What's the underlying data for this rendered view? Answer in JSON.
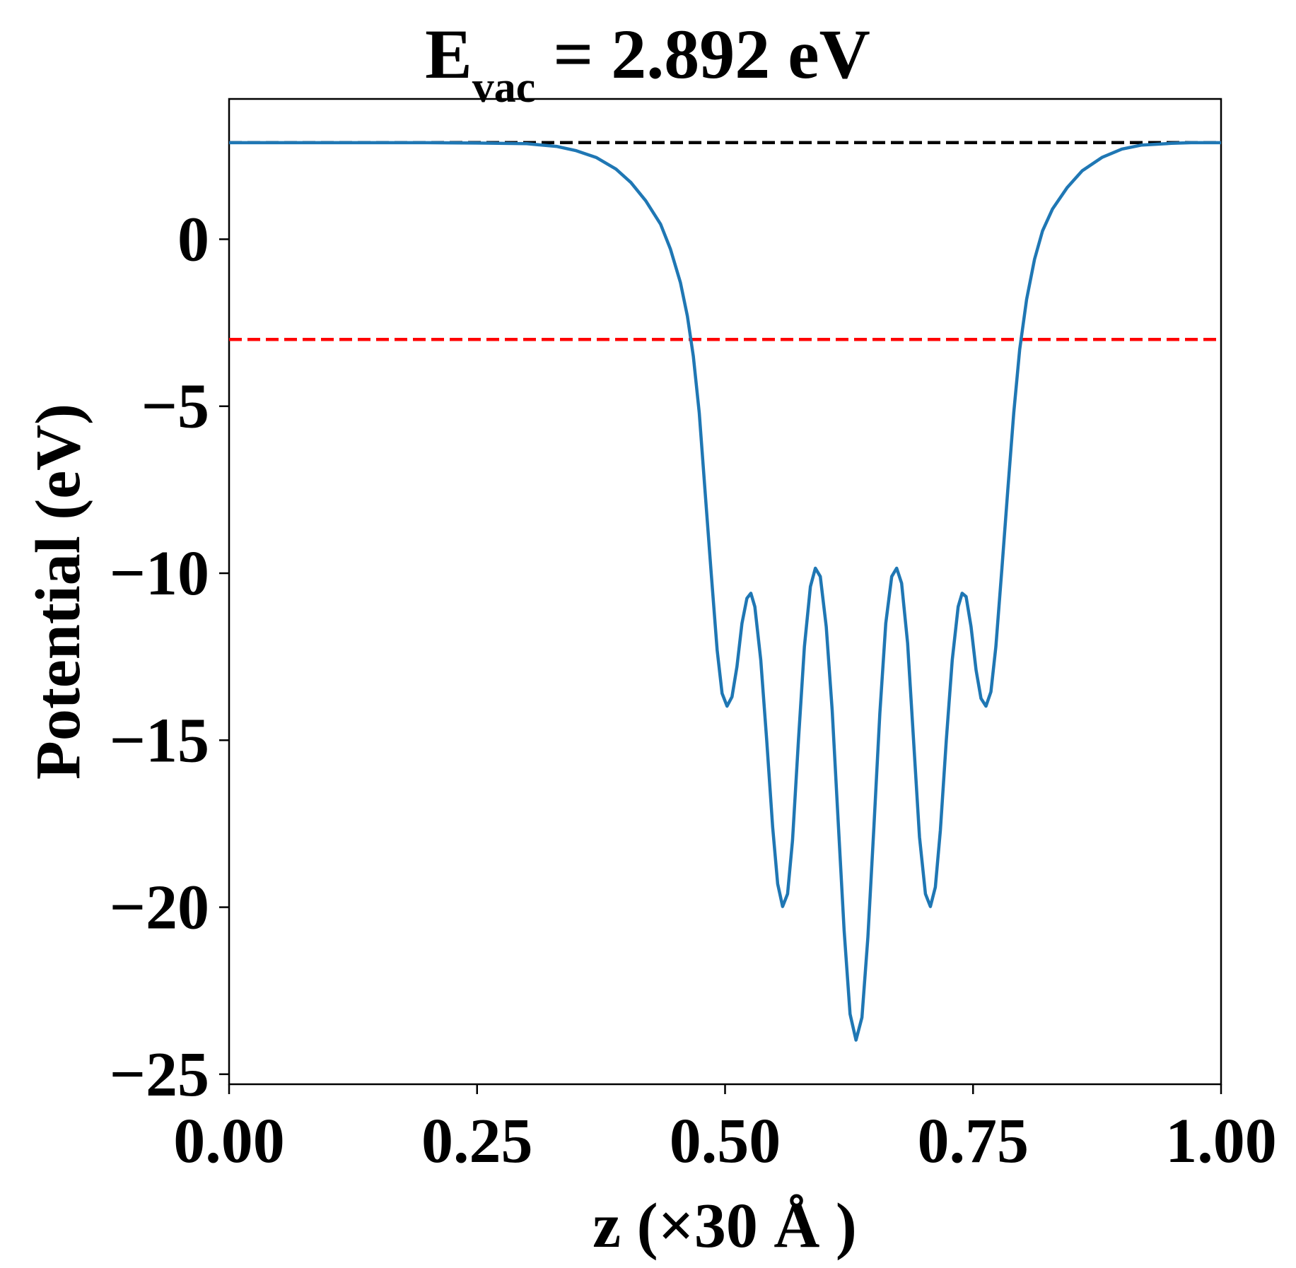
{
  "chart_data": {
    "type": "line",
    "title": {
      "main": "E",
      "subscript": "vac",
      "rest": " = 2.892 eV"
    },
    "xlabel": "z (×30 Å )",
    "ylabel": "Potential (eV)",
    "xlim": [
      0,
      1
    ],
    "ylim": [
      -25.3,
      4.2
    ],
    "x_ticks": [
      0,
      0.25,
      0.5,
      0.75,
      1.0
    ],
    "x_tick_labels": [
      "0.00",
      "0.25",
      "0.50",
      "0.75",
      "1.00"
    ],
    "y_ticks": [
      0,
      -5,
      -10,
      -15,
      -20,
      -25
    ],
    "y_tick_labels": [
      "0",
      "−5",
      "−10",
      "−15",
      "−20",
      "−25"
    ],
    "grid": false,
    "legend": "none",
    "reference_lines": [
      {
        "y": 2.892,
        "color": "#000000",
        "style": "dashed"
      },
      {
        "y": -3.0,
        "color": "#ff0000",
        "style": "dashed"
      }
    ],
    "series": [
      {
        "color": "#1f77b4",
        "points": [
          [
            0.0,
            2.89
          ],
          [
            0.05,
            2.89
          ],
          [
            0.1,
            2.89
          ],
          [
            0.15,
            2.89
          ],
          [
            0.2,
            2.89
          ],
          [
            0.25,
            2.88
          ],
          [
            0.3,
            2.86
          ],
          [
            0.33,
            2.78
          ],
          [
            0.35,
            2.65
          ],
          [
            0.37,
            2.45
          ],
          [
            0.39,
            2.1
          ],
          [
            0.405,
            1.7
          ],
          [
            0.42,
            1.15
          ],
          [
            0.435,
            0.45
          ],
          [
            0.445,
            -0.3
          ],
          [
            0.455,
            -1.3
          ],
          [
            0.462,
            -2.3
          ],
          [
            0.468,
            -3.5
          ],
          [
            0.474,
            -5.2
          ],
          [
            0.48,
            -7.6
          ],
          [
            0.486,
            -10.0
          ],
          [
            0.492,
            -12.3
          ],
          [
            0.497,
            -13.6
          ],
          [
            0.502,
            -13.98
          ],
          [
            0.507,
            -13.7
          ],
          [
            0.512,
            -12.8
          ],
          [
            0.517,
            -11.5
          ],
          [
            0.522,
            -10.75
          ],
          [
            0.526,
            -10.6
          ],
          [
            0.53,
            -11.0
          ],
          [
            0.536,
            -12.6
          ],
          [
            0.542,
            -15.0
          ],
          [
            0.548,
            -17.6
          ],
          [
            0.553,
            -19.3
          ],
          [
            0.558,
            -19.98
          ],
          [
            0.563,
            -19.6
          ],
          [
            0.568,
            -18.0
          ],
          [
            0.574,
            -15.0
          ],
          [
            0.58,
            -12.2
          ],
          [
            0.586,
            -10.4
          ],
          [
            0.591,
            -9.85
          ],
          [
            0.596,
            -10.1
          ],
          [
            0.602,
            -11.6
          ],
          [
            0.608,
            -14.1
          ],
          [
            0.614,
            -17.4
          ],
          [
            0.62,
            -20.7
          ],
          [
            0.626,
            -23.2
          ],
          [
            0.632,
            -23.98
          ],
          [
            0.638,
            -23.3
          ],
          [
            0.644,
            -20.9
          ],
          [
            0.65,
            -17.6
          ],
          [
            0.656,
            -14.2
          ],
          [
            0.662,
            -11.5
          ],
          [
            0.668,
            -10.1
          ],
          [
            0.673,
            -9.85
          ],
          [
            0.678,
            -10.3
          ],
          [
            0.684,
            -12.1
          ],
          [
            0.69,
            -15.0
          ],
          [
            0.696,
            -17.9
          ],
          [
            0.702,
            -19.6
          ],
          [
            0.707,
            -19.98
          ],
          [
            0.712,
            -19.4
          ],
          [
            0.717,
            -17.7
          ],
          [
            0.723,
            -15.0
          ],
          [
            0.729,
            -12.6
          ],
          [
            0.735,
            -11.0
          ],
          [
            0.739,
            -10.6
          ],
          [
            0.743,
            -10.7
          ],
          [
            0.748,
            -11.6
          ],
          [
            0.753,
            -12.9
          ],
          [
            0.758,
            -13.75
          ],
          [
            0.763,
            -13.98
          ],
          [
            0.768,
            -13.55
          ],
          [
            0.773,
            -12.2
          ],
          [
            0.779,
            -9.9
          ],
          [
            0.785,
            -7.5
          ],
          [
            0.791,
            -5.2
          ],
          [
            0.797,
            -3.3
          ],
          [
            0.804,
            -1.8
          ],
          [
            0.812,
            -0.6
          ],
          [
            0.82,
            0.25
          ],
          [
            0.83,
            0.9
          ],
          [
            0.845,
            1.55
          ],
          [
            0.86,
            2.05
          ],
          [
            0.88,
            2.45
          ],
          [
            0.9,
            2.7
          ],
          [
            0.92,
            2.82
          ],
          [
            0.95,
            2.87
          ],
          [
            0.97,
            2.89
          ],
          [
            1.0,
            2.89
          ]
        ]
      }
    ]
  }
}
